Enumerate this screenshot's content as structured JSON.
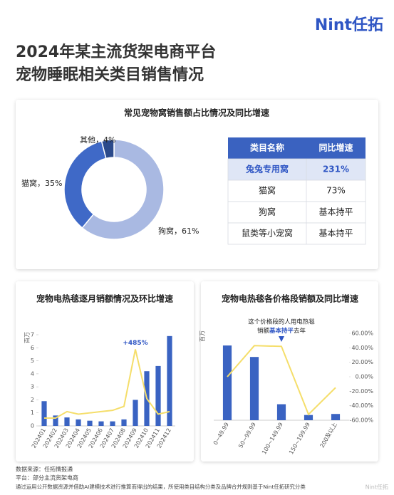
{
  "logo": "Nint任拓",
  "title": [
    "2024年某主流货架电商平台",
    "宠物睡眠相关类目销售情况"
  ],
  "chart_data": [
    {
      "type": "donut",
      "title": "常见宠物窝销售额占比情况及同比增速",
      "categories": [
        "狗窝",
        "猫窝",
        "其他"
      ],
      "values": [
        61,
        35,
        4
      ],
      "value_labels": [
        "狗窝，61%",
        "猫窝，35%",
        "其他，4%"
      ],
      "colors": [
        "#a9b9e2",
        "#3f69c7",
        "#2b4a8b"
      ]
    },
    {
      "type": "bar-line",
      "title": "宠物电热毯逐月销额情况及环比增速",
      "categories": [
        "202401",
        "202402",
        "202403",
        "202404",
        "202405",
        "202406",
        "202407",
        "202408",
        "202409",
        "202410",
        "202411",
        "202412"
      ],
      "y_unit": "百万",
      "ylim": [
        0,
        7
      ],
      "yticks": [
        0,
        1,
        2,
        3,
        4,
        5,
        6,
        7
      ],
      "y2lim": [
        -120,
        600
      ],
      "series": [
        {
          "type": "bar",
          "color": "#3a63c2",
          "values": [
            1.9,
            0.8,
            0.65,
            0.5,
            0.4,
            0.35,
            0.35,
            0.5,
            2.0,
            4.2,
            4.6,
            6.9
          ]
        },
        {
          "type": "line",
          "axis": "y2",
          "color": "#f5de6a",
          "values": [
            -58,
            -58,
            -7,
            -27,
            -17,
            -7,
            3,
            34,
            485,
            96,
            -27,
            -7
          ]
        }
      ],
      "annotation": "+485%"
    },
    {
      "type": "bar-line",
      "title": "宠物电热毯各价格段销额及同比增速",
      "categories": [
        "0~49.99",
        "50~99.99",
        "100~149.99",
        "150~199.99",
        "200及以上"
      ],
      "y_unit": "百万",
      "ylim": [
        0,
        25
      ],
      "y2lim": [
        -60,
        60
      ],
      "y2ticks": [
        {
          "value": 60,
          "label": "60.00%"
        },
        {
          "value": 40,
          "label": "40.00%"
        },
        {
          "value": 20,
          "label": "20.00%"
        },
        {
          "value": 0,
          "label": "0.00%"
        },
        {
          "value": -20,
          "label": "-20.00%"
        },
        {
          "value": -40,
          "label": "-40.00%"
        },
        {
          "value": -60,
          "label": "-60.00%"
        }
      ],
      "series": [
        {
          "type": "bar",
          "color": "#3a63c2",
          "values": [
            21.5,
            18.2,
            4.6,
            1.5,
            1.8
          ]
        },
        {
          "type": "line",
          "axis": "y2",
          "color": "#f5de6a",
          "values": [
            0,
            43,
            42,
            -52,
            -15
          ]
        }
      ],
      "annotation": {
        "line1": "这个价格段的人用电热毯",
        "line2": [
          "销额",
          "基本持平",
          "去年"
        ]
      }
    }
  ],
  "table": {
    "header": [
      "类目名称",
      "同比增速"
    ],
    "rows": [
      [
        "兔兔专用窝",
        "231%"
      ],
      [
        "猫窝",
        "73%"
      ],
      [
        "狗窝",
        "基本持平"
      ],
      [
        "鼠类等小宠窝",
        "基本持平"
      ]
    ]
  },
  "footer": [
    "数据来源：任拓情报通",
    "平台：部分主流货架电商",
    "通过运用公开数据资源并借助AI建模技术进行推算而得出的结果，所使用类目结构分类及品牌合并规则基于Nint任拓研究分类"
  ],
  "watermark": "Nint任拓"
}
